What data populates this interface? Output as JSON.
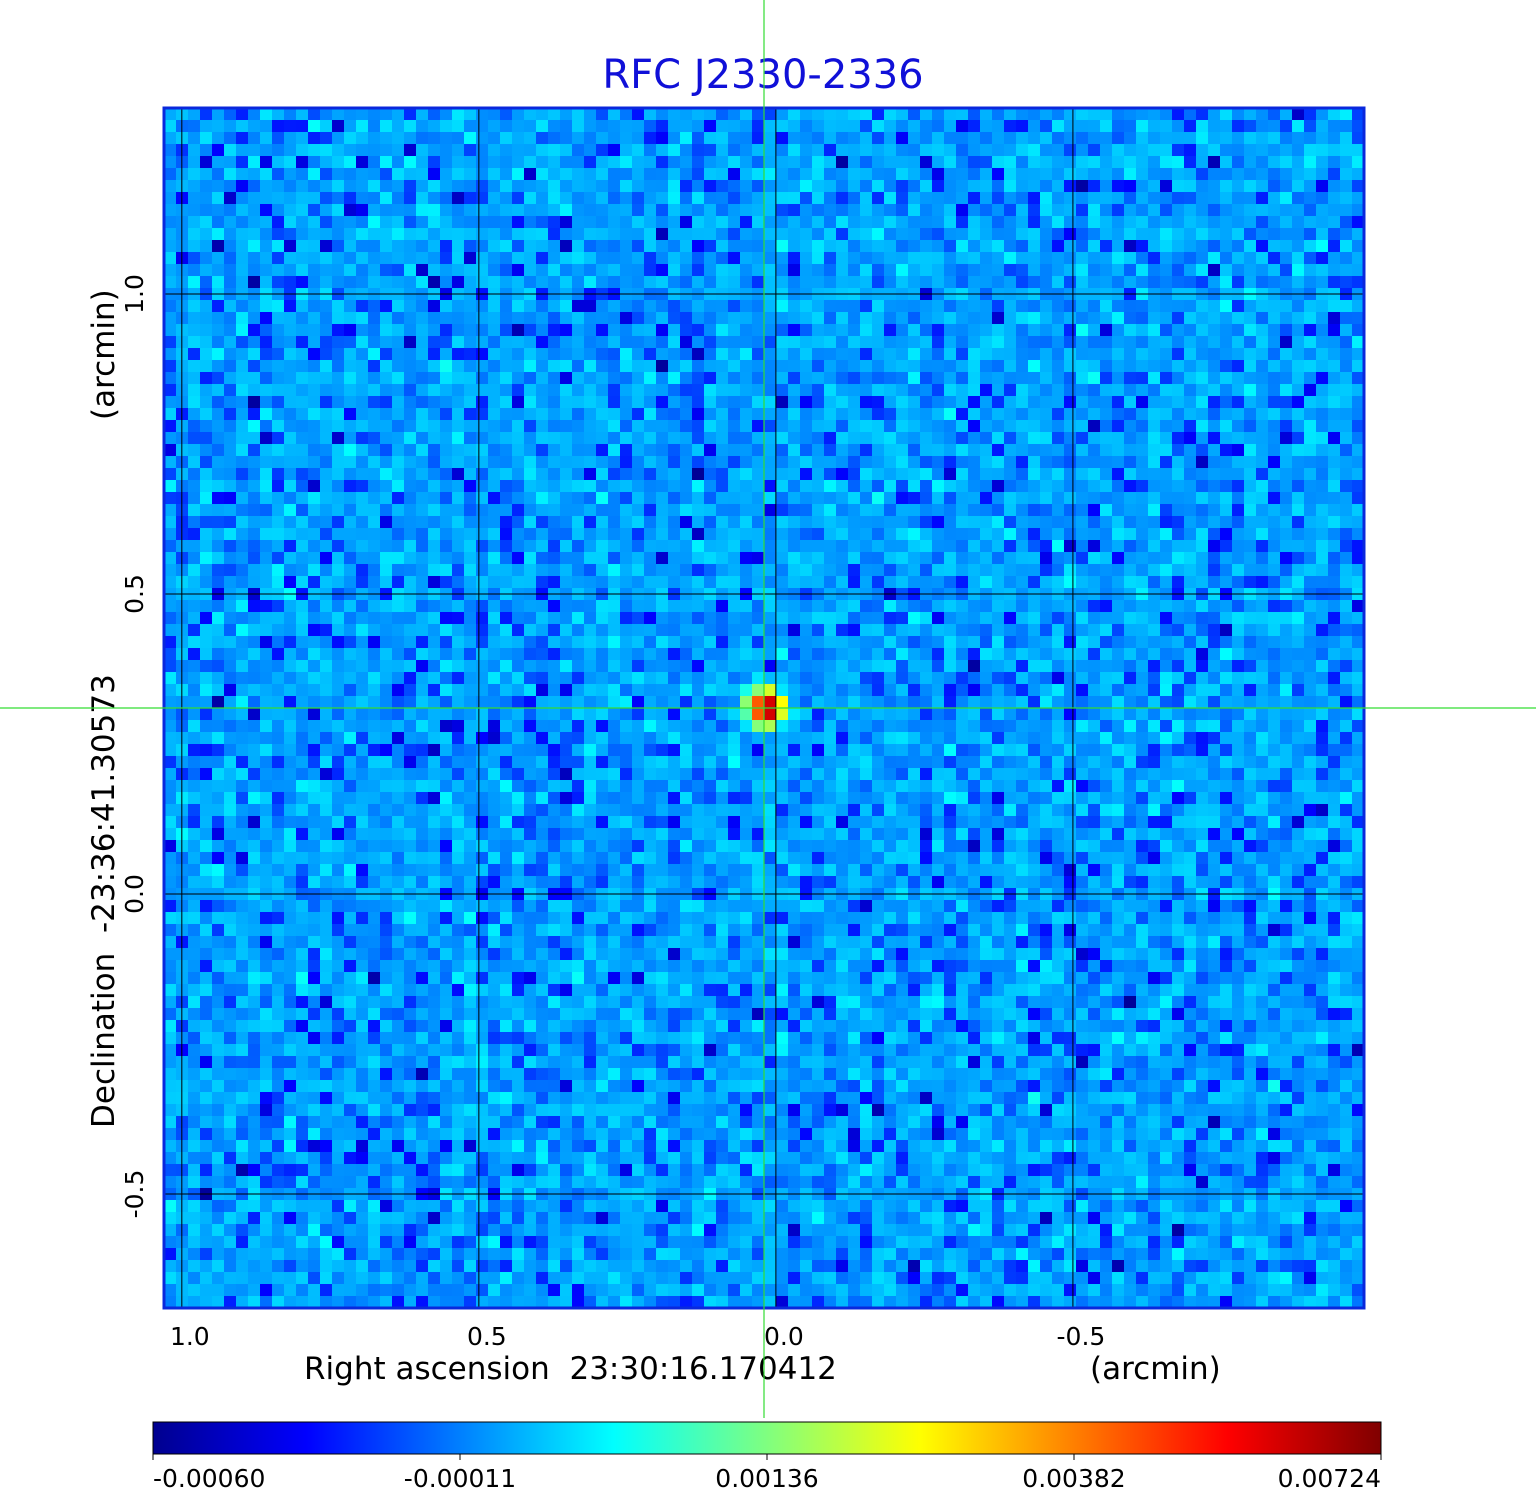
{
  "chart_data": {
    "type": "heatmap",
    "title": "RFC J2330-2336",
    "xlabel": "Right ascension  23:30:16.170412",
    "xlabel_unit": "(arcmin)",
    "ylabel": "Declination  -23:36:41.30573",
    "ylabel_unit": "(arcmin)",
    "x_ticks": [
      {
        "value": 1.0,
        "label": "1.0"
      },
      {
        "value": 0.5,
        "label": "0.5"
      },
      {
        "value": 0.0,
        "label": "0.0"
      },
      {
        "value": -0.5,
        "label": "-0.5"
      }
    ],
    "y_ticks": [
      {
        "value": 1.0,
        "label": "1.0"
      },
      {
        "value": 0.5,
        "label": "0.5"
      },
      {
        "value": 0.0,
        "label": "0.0"
      },
      {
        "value": -0.5,
        "label": "-0.5"
      }
    ],
    "xlim": [
      1.03,
      -0.99
    ],
    "ylim": [
      -0.69,
      1.31
    ],
    "grid": true,
    "crosshair": {
      "x": 0.02,
      "y": 0.31
    },
    "source_peak": {
      "x": 0.015,
      "y": 0.31,
      "value": 0.00724
    },
    "noise_range": [
      -0.0006,
      0.0008
    ],
    "colorbar": {
      "ticks": [
        {
          "value": -0.0006,
          "label": "-0.00060"
        },
        {
          "value": -0.00011,
          "label": "-0.00011"
        },
        {
          "value": 0.00136,
          "label": "0.00136"
        },
        {
          "value": 0.00382,
          "label": "0.00382"
        },
        {
          "value": 0.00724,
          "label": "0.00724"
        }
      ],
      "colormap": "jet"
    },
    "colors": {
      "title": "#1010d8",
      "frame": "#0a28dc",
      "grid": "#000000",
      "crosshair": "#33dd33"
    }
  }
}
